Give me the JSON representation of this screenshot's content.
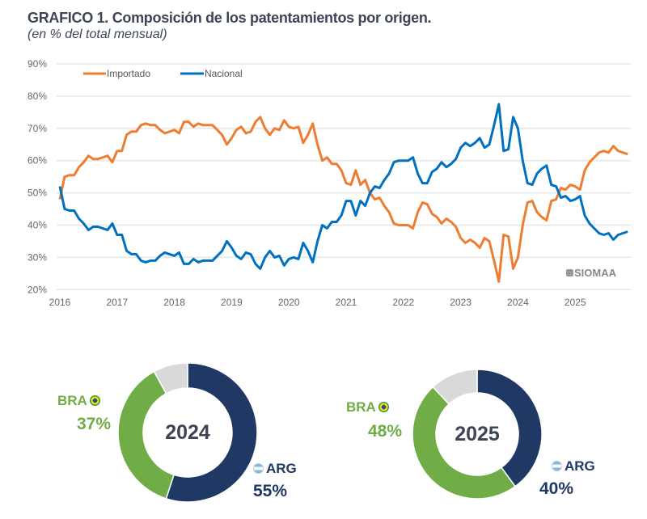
{
  "header": {
    "title": "GRAFICO 1. Composición de los patentamientos por origen.",
    "subtitle": "(en % del total mensual)"
  },
  "watermark": "SIOMAA",
  "colors": {
    "importado": "#ED7D31",
    "nacional": "#0070C0",
    "arg": "#1F3864",
    "bra": "#70AD47",
    "other": "#D9D9D9",
    "grid": "#E6E6E6"
  },
  "chart_data": [
    {
      "type": "line",
      "ylim": [
        20,
        90
      ],
      "yticks": [
        "20%",
        "30%",
        "40%",
        "50%",
        "60%",
        "70%",
        "80%",
        "90%"
      ],
      "ytick_values": [
        20,
        30,
        40,
        50,
        60,
        70,
        80,
        90
      ],
      "xticks": [
        "2016",
        "2017",
        "2018",
        "2019",
        "2020",
        "2021",
        "2022",
        "2023",
        "2024",
        "2025"
      ],
      "x_start": "2016-01",
      "x_end": "2025-12",
      "frequency": "monthly",
      "grid": true,
      "legend": "top-left",
      "series": [
        {
          "name": "Importado",
          "values": [
            48,
            55,
            55.5,
            55.5,
            58,
            59.5,
            61.5,
            60.5,
            60.5,
            61,
            61.5,
            59.5,
            63,
            63,
            68,
            69,
            69,
            71,
            71.5,
            71,
            71,
            69.5,
            68.5,
            69,
            69.5,
            68.5,
            72,
            72,
            70.5,
            71.5,
            71,
            71,
            71,
            69.5,
            68,
            65,
            67,
            69.5,
            70.5,
            68.5,
            69,
            72,
            73.5,
            70,
            68,
            70,
            69.5,
            72.5,
            70.5,
            70,
            70.5,
            65.5,
            68,
            71.5,
            65,
            60,
            61,
            59,
            59,
            57,
            53,
            52.5,
            57,
            52.5,
            54,
            50,
            48,
            48.5,
            46,
            44,
            40.5,
            40,
            40,
            40,
            39,
            44,
            47,
            46.5,
            43.5,
            42.5,
            40.5,
            42,
            41,
            39.5,
            36,
            34.5,
            35.5,
            34.5,
            33,
            36,
            35,
            29,
            22.5,
            37,
            36.5,
            26.5,
            30,
            40,
            47,
            47.5,
            44,
            42.5,
            41.5,
            47.5,
            48,
            51.5,
            51,
            52.5,
            52,
            51,
            57,
            59.5,
            61,
            62.5,
            63,
            62.5,
            64.5,
            63,
            62.5,
            62
          ]
        },
        {
          "name": "Nacional",
          "values": [
            52,
            45,
            44.5,
            44.5,
            42,
            40.5,
            38.5,
            39.5,
            39.5,
            39,
            38.5,
            40.5,
            37,
            37,
            32,
            31,
            31,
            29,
            28.5,
            29,
            29,
            30.5,
            31.5,
            31,
            30.5,
            31.5,
            28,
            28,
            29.5,
            28.5,
            29,
            29,
            29,
            30.5,
            32,
            35,
            33,
            30.5,
            29.5,
            31.5,
            31,
            28,
            26.5,
            30,
            32,
            30,
            30.5,
            27.5,
            29.5,
            30,
            29.5,
            34.5,
            32,
            28.5,
            35,
            40,
            39,
            41,
            41,
            43,
            47.5,
            47.5,
            43,
            47.5,
            46,
            50,
            52,
            51.5,
            54,
            56,
            59.5,
            60,
            60,
            60,
            61,
            56,
            53,
            53,
            56.5,
            57.5,
            59.5,
            58,
            59,
            60.5,
            64,
            65.5,
            64.5,
            65.5,
            67,
            64,
            65,
            71,
            77.5,
            63,
            63.5,
            73.5,
            70,
            60,
            53,
            52.5,
            56,
            57.5,
            58.5,
            52.5,
            52,
            48.5,
            49,
            47.5,
            48,
            49,
            43,
            40.5,
            39,
            37.5,
            37,
            37.5,
            35.5,
            37,
            37.5,
            38
          ]
        }
      ]
    },
    {
      "type": "pie",
      "variant": "donut",
      "center_label": "2024",
      "slices": [
        {
          "name": "ARG",
          "value": 55,
          "label": "55%"
        },
        {
          "name": "BRA",
          "value": 37,
          "label": "37%"
        },
        {
          "name": "Other",
          "value": 8
        }
      ]
    },
    {
      "type": "pie",
      "variant": "donut",
      "center_label": "2025",
      "slices": [
        {
          "name": "ARG",
          "value": 40,
          "label": "40%"
        },
        {
          "name": "BRA",
          "value": 48,
          "label": "48%"
        },
        {
          "name": "Other",
          "value": 12
        }
      ]
    }
  ]
}
